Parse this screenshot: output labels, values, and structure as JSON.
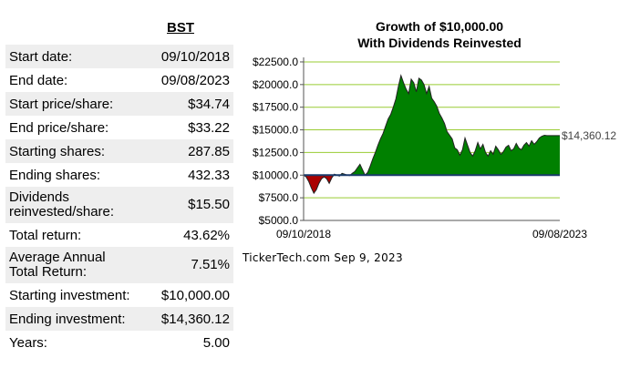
{
  "ticker": "BST",
  "stats": [
    {
      "label": "Start date:",
      "value": "09/10/2018"
    },
    {
      "label": "End date:",
      "value": "09/08/2023"
    },
    {
      "label": "Start price/share:",
      "value": "$34.74"
    },
    {
      "label": "End price/share:",
      "value": "$33.22"
    },
    {
      "label": "Starting shares:",
      "value": "287.85"
    },
    {
      "label": "Ending shares:",
      "value": "432.33"
    },
    {
      "label": "Dividends reinvested/share:",
      "value": "$15.50"
    },
    {
      "label": "Total return:",
      "value": "43.62%"
    },
    {
      "label": "Average Annual Total Return:",
      "value": "7.51%"
    },
    {
      "label": "Starting investment:",
      "value": "$10,000.00"
    },
    {
      "label": "Ending investment:",
      "value": "$14,360.12"
    },
    {
      "label": "Years:",
      "value": "5.00"
    }
  ],
  "chart_title_line1": "Growth of $10,000.00",
  "chart_title_line2": "With Dividends Reinvested",
  "credit": "TickerTech.com Sep 9, 2023",
  "chart_data": {
    "type": "area",
    "title": "Growth of $10,000.00 With Dividends Reinvested",
    "xlabel": "",
    "ylabel": "",
    "x_tick_labels": [
      "09/10/2018",
      "09/08/2023"
    ],
    "y_tick_labels": [
      "$5000.0",
      "$7500.0",
      "$10000.0",
      "$12500.0",
      "$15000.0",
      "$17500.0",
      "$20000.0",
      "$22500.0"
    ],
    "y_ticks": [
      5000,
      7500,
      10000,
      12500,
      15000,
      17500,
      20000,
      22500
    ],
    "ylim": [
      5000,
      23000
    ],
    "baseline": 10000,
    "end_label": "$14,360.12",
    "x_range": [
      0,
      5
    ],
    "series": [
      {
        "x": [
          0,
          0.05,
          0.1,
          0.15,
          0.2,
          0.25,
          0.3,
          0.35,
          0.4,
          0.45,
          0.5,
          0.55,
          0.6,
          0.65,
          0.7,
          0.75,
          0.8,
          0.85,
          0.9,
          0.95,
          1.0,
          1.05,
          1.1,
          1.15,
          1.2,
          1.25,
          1.3,
          1.35,
          1.4,
          1.45,
          1.5,
          1.55,
          1.6,
          1.65,
          1.7,
          1.75,
          1.8,
          1.85,
          1.9,
          1.95,
          2.0,
          2.05,
          2.1,
          2.15,
          2.2,
          2.25,
          2.3,
          2.35,
          2.4,
          2.45,
          2.5,
          2.55,
          2.6,
          2.65,
          2.7,
          2.75,
          2.8,
          2.85,
          2.9,
          2.95,
          3.0,
          3.05,
          3.1,
          3.15,
          3.2,
          3.25,
          3.3,
          3.35,
          3.4,
          3.45,
          3.5,
          3.55,
          3.6,
          3.65,
          3.7,
          3.75,
          3.8,
          3.85,
          3.9,
          3.95,
          4.0,
          4.05,
          4.1,
          4.15,
          4.2,
          4.25,
          4.3,
          4.35,
          4.4,
          4.45,
          4.5,
          4.55,
          4.6,
          4.65,
          4.7,
          4.75,
          4.8,
          4.85,
          4.9,
          4.95,
          5.0
        ],
        "values": [
          10000,
          9800,
          9300,
          8600,
          8000,
          8400,
          9100,
          9600,
          9800,
          9600,
          9100,
          9700,
          10100,
          10000,
          9900,
          10200,
          10100,
          10000,
          9950,
          10200,
          10400,
          10800,
          11200,
          10600,
          10000,
          10300,
          11000,
          11800,
          12500,
          13300,
          14000,
          14600,
          15400,
          16200,
          16700,
          17500,
          18400,
          19800,
          21000,
          20200,
          19500,
          19000,
          20600,
          20200,
          19200,
          20700,
          20500,
          20000,
          19000,
          19800,
          18500,
          18100,
          17600,
          16800,
          16300,
          15700,
          14800,
          14400,
          14000,
          13000,
          12800,
          12200,
          12800,
          14100,
          13300,
          12500,
          12100,
          12700,
          13600,
          12900,
          13400,
          12500,
          12100,
          12700,
          12300,
          13200,
          12800,
          12300,
          12600,
          13100,
          13300,
          12700,
          12900,
          13500,
          13000,
          12800,
          13300,
          13600,
          13200,
          13800,
          13400,
          13700,
          14100,
          14300,
          14400,
          14360,
          14360,
          14360,
          14360,
          14360,
          14360
        ]
      }
    ],
    "colors": {
      "above": "#008000",
      "below": "#aa0000",
      "grid": "#99cc33",
      "plot_bg": "#ffffff",
      "baseline": "#1a3a6b"
    }
  }
}
